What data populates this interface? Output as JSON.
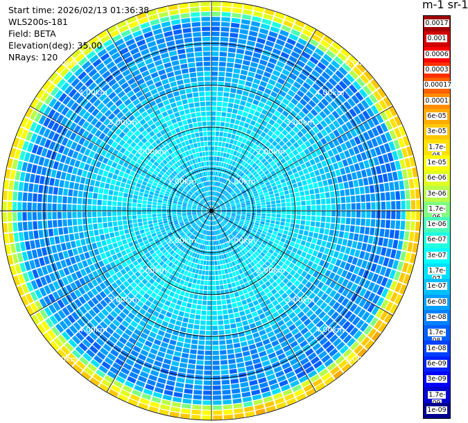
{
  "info": {
    "start_time": "Start time: 2026/02/13 01:36:38",
    "instrument": "WLS200s-181",
    "field": "Field: BETA",
    "elevation": "Elevation(deg): 35.00",
    "nrays": "NRays: 120"
  },
  "chart_data": {
    "type": "heatmap",
    "projection": "polar-ppi",
    "field": "BETA",
    "nrays": 120,
    "elevation_deg": 35.0,
    "max_range_km": 5.0,
    "range_ring_labels": [
      "1.00km",
      "2.00km",
      "3.00km",
      "4.00km",
      "5.00km"
    ],
    "colorbar": {
      "title": "m-1 sr-1",
      "levels": [
        "0.0017",
        "0.001",
        "0.0006",
        "0.0003",
        "0.00017",
        "0.0001",
        "6e-05",
        "3e-05",
        "1.7e-05",
        "1e-05",
        "6e-06",
        "3e-06",
        "1.7e-06",
        "1e-06",
        "6e-07",
        "3e-07",
        "1.7e-07",
        "1e-07",
        "6e-08",
        "3e-08",
        "1.7e-08",
        "1e-08",
        "6e-09",
        "3e-09",
        "1.7e-09",
        "1e-09"
      ],
      "colors": [
        "#a00000",
        "#d00000",
        "#ff0000",
        "#ff3000",
        "#ff6000",
        "#ff8c00",
        "#ffaa00",
        "#ffc800",
        "#ffe000",
        "#ffff00",
        "#e0ff20",
        "#b8ff48",
        "#80ff80",
        "#48ffb8",
        "#20ffe0",
        "#00ffff",
        "#00e0ff",
        "#00c0ff",
        "#00a0ff",
        "#0080ff",
        "#0060ff",
        "#0040ff",
        "#0020ff",
        "#0000ff",
        "#0000d0",
        "#000090"
      ]
    },
    "approx_profile": [
      {
        "range_km": 0.5,
        "level": "1e-07"
      },
      {
        "range_km": 1.5,
        "level": "1.7e-07"
      },
      {
        "range_km": 2.5,
        "level": "1.7e-07"
      },
      {
        "range_km": 3.5,
        "level": "6e-08"
      },
      {
        "range_km": 4.5,
        "level": "3e-08"
      },
      {
        "range_km": 4.85,
        "level": "6e-06"
      }
    ]
  }
}
